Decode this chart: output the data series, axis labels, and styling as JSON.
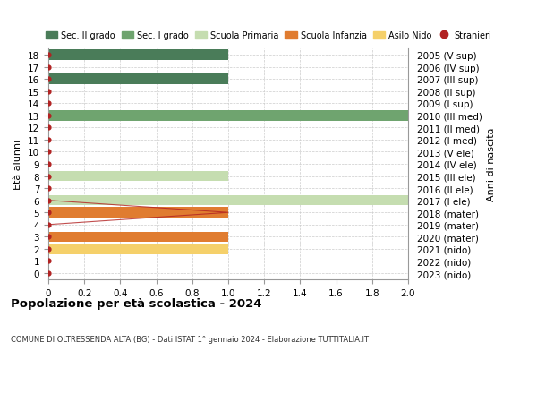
{
  "title": "Popolazione per età scolastica - 2024",
  "subtitle": "COMUNE DI OLTRESSENDA ALTA (BG) - Dati ISTAT 1° gennaio 2024 - Elaborazione TUTTITALIA.IT",
  "xlabel_left": "Età alunni",
  "ylabel_right": "Anni di nascita",
  "xlim": [
    0,
    2.0
  ],
  "ylim": [
    -0.5,
    18.5
  ],
  "xticks": [
    0,
    0.2,
    0.4,
    0.6,
    0.8,
    1.0,
    1.2,
    1.4,
    1.6,
    1.8,
    2.0
  ],
  "yticks": [
    0,
    1,
    2,
    3,
    4,
    5,
    6,
    7,
    8,
    9,
    10,
    11,
    12,
    13,
    14,
    15,
    16,
    17,
    18
  ],
  "right_labels": [
    "2023 (nido)",
    "2022 (nido)",
    "2021 (nido)",
    "2020 (mater)",
    "2019 (mater)",
    "2018 (mater)",
    "2017 (I ele)",
    "2016 (II ele)",
    "2015 (III ele)",
    "2014 (IV ele)",
    "2013 (V ele)",
    "2012 (I med)",
    "2011 (II med)",
    "2010 (III med)",
    "2009 (I sup)",
    "2008 (II sup)",
    "2007 (III sup)",
    "2006 (IV sup)",
    "2005 (V sup)"
  ],
  "bars": [
    {
      "age": 18,
      "value": 1.0,
      "color": "#4a7c59",
      "category": "Sec. II grado"
    },
    {
      "age": 16,
      "value": 1.0,
      "color": "#4a7c59",
      "category": "Sec. II grado"
    },
    {
      "age": 13,
      "value": 2.0,
      "color": "#6fa46f",
      "category": "Sec. I grado"
    },
    {
      "age": 8,
      "value": 1.0,
      "color": "#c5ddb0",
      "category": "Scuola Primaria"
    },
    {
      "age": 6,
      "value": 2.0,
      "color": "#c5ddb0",
      "category": "Scuola Primaria"
    },
    {
      "age": 5,
      "value": 1.0,
      "color": "#e07c30",
      "category": "Scuola Infanzia"
    },
    {
      "age": 3,
      "value": 1.0,
      "color": "#e07c30",
      "category": "Scuola Infanzia"
    },
    {
      "age": 2,
      "value": 1.0,
      "color": "#f5d06a",
      "category": "Asilo Nido"
    }
  ],
  "stranieri_dots": [
    0,
    1,
    2,
    3,
    4,
    5,
    6,
    7,
    8,
    9,
    10,
    11,
    12,
    13,
    14,
    15,
    16,
    17,
    18
  ],
  "stranieri_line_x": [
    0,
    1.0,
    0
  ],
  "stranieri_line_y": [
    6,
    5,
    4
  ],
  "stranieri_color": "#b22222",
  "bar_height": 0.85,
  "background_color": "#ffffff",
  "grid_color": "#cccccc",
  "legend_items": [
    {
      "label": "Sec. II grado",
      "color": "#4a7c59"
    },
    {
      "label": "Sec. I grado",
      "color": "#6fa46f"
    },
    {
      "label": "Scuola Primaria",
      "color": "#c5ddb0"
    },
    {
      "label": "Scuola Infanzia",
      "color": "#e07c30"
    },
    {
      "label": "Asilo Nido",
      "color": "#f5d06a"
    },
    {
      "label": "Stranieri",
      "color": "#b22222"
    }
  ]
}
